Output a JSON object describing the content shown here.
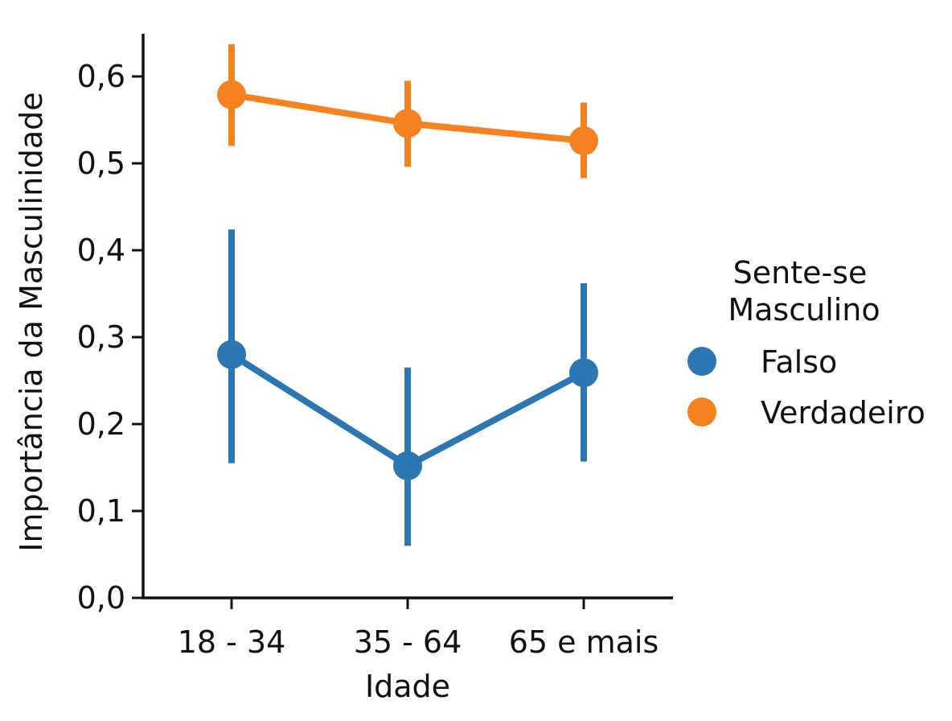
{
  "chart_data": {
    "type": "line",
    "title": "",
    "xlabel": "Idade",
    "ylabel": "Importância da Masculinidade",
    "categories": [
      "18 - 34",
      "35 - 64",
      "65 e mais"
    ],
    "ylim": [
      0.0,
      0.65
    ],
    "yticks": [
      0.0,
      0.1,
      0.2,
      0.3,
      0.4,
      0.5,
      0.6
    ],
    "ytick_labels": [
      "0,0",
      "0,1",
      "0,2",
      "0,3",
      "0,4",
      "0,5",
      "0,6"
    ],
    "grid": false,
    "legend": {
      "title_lines": [
        "Sente-se",
        "Masculino"
      ],
      "placement": "right-outside"
    },
    "series": [
      {
        "name": "Falso",
        "color": "#2b77b3",
        "values": [
          0.28,
          0.152,
          0.259
        ],
        "ci_low": [
          0.155,
          0.06,
          0.157
        ],
        "ci_high": [
          0.424,
          0.265,
          0.362
        ]
      },
      {
        "name": "Verdadeiro",
        "color": "#f5821f",
        "values": [
          0.579,
          0.546,
          0.526
        ],
        "ci_low": [
          0.52,
          0.496,
          0.483
        ],
        "ci_high": [
          0.637,
          0.595,
          0.57
        ]
      }
    ]
  }
}
